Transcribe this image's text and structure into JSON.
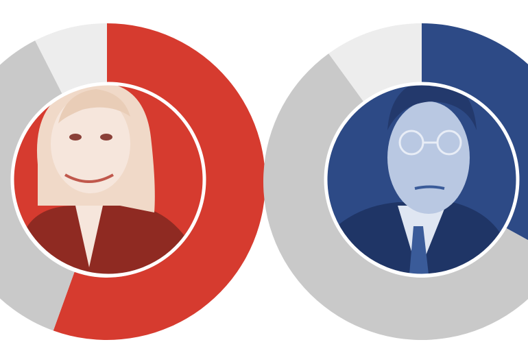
{
  "chart_data": [
    {
      "type": "donut",
      "values": [
        55.5,
        37,
        7.5
      ],
      "colors": [
        "#d63b2f",
        "#c9c9c9",
        "#ededed"
      ]
    },
    {
      "type": "donut",
      "values": [
        33,
        57,
        10
      ],
      "colors": [
        "#2d4a86",
        "#c9c9c9",
        "#ededed"
      ]
    }
  ]
}
